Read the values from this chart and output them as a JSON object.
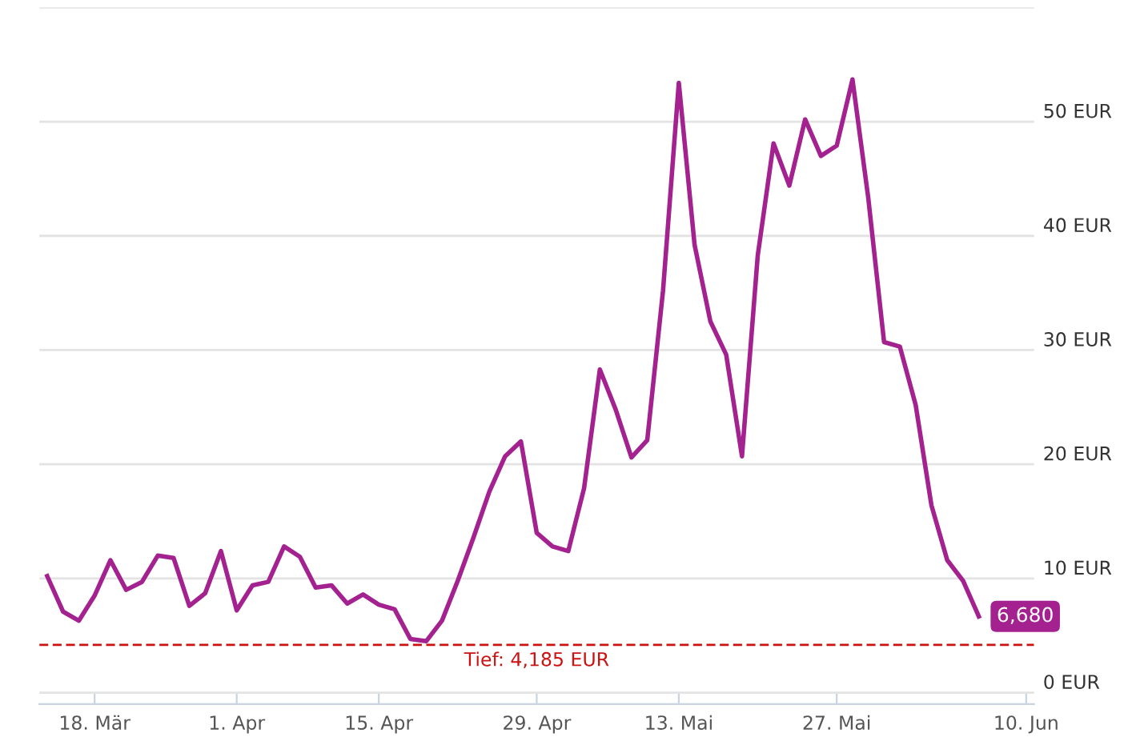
{
  "chart_data": {
    "type": "line",
    "categories": [
      null,
      null,
      null,
      "18. Mär",
      null,
      null,
      null,
      null,
      null,
      null,
      null,
      null,
      "1. Apr",
      null,
      null,
      null,
      null,
      null,
      null,
      null,
      null,
      "15. Apr",
      null,
      null,
      null,
      null,
      null,
      null,
      null,
      null,
      null,
      "29. Apr",
      null,
      null,
      null,
      null,
      null,
      null,
      null,
      null,
      "13. Mai",
      null,
      null,
      null,
      null,
      null,
      null,
      null,
      null,
      null,
      "27. Mai",
      null,
      null,
      null,
      null,
      null,
      null,
      null,
      null,
      null,
      null,
      null,
      "10. Jun"
    ],
    "series": [
      {
        "color": "#a3228f",
        "values": [
          10.2,
          7.1,
          6.3,
          8.5,
          11.6,
          9.0,
          9.7,
          12.0,
          11.8,
          7.6,
          8.7,
          12.4,
          7.2,
          9.4,
          9.7,
          12.8,
          11.9,
          9.2,
          9.4,
          7.8,
          8.6,
          7.7,
          7.3,
          4.7,
          4.5,
          6.3,
          9.8,
          13.6,
          17.6,
          20.7,
          22.0,
          14.0,
          12.8,
          12.4,
          17.9,
          28.3,
          24.8,
          20.6,
          22.1,
          35.2,
          53.4,
          39.2,
          32.5,
          29.6,
          20.7,
          38.3,
          48.1,
          44.4,
          50.2,
          47.0,
          47.9,
          53.7,
          43.3,
          30.7,
          30.3,
          25.2,
          16.4,
          11.6,
          9.8,
          6.68,
          null,
          null,
          null
        ]
      }
    ],
    "ylim": [
      -1,
      60
    ],
    "yticks": [
      {
        "value": 0,
        "label": "0 EUR"
      },
      {
        "value": 10,
        "label": "10 EUR"
      },
      {
        "value": 20,
        "label": "20 EUR"
      },
      {
        "value": 30,
        "label": "30 EUR"
      },
      {
        "value": 40,
        "label": "40 EUR"
      },
      {
        "value": 50,
        "label": "50 EUR"
      },
      {
        "value": 60,
        "label": null
      }
    ],
    "grid": "y",
    "marker": "none",
    "line_style": "solid",
    "ref_lines": [
      {
        "axis": "y",
        "value": 4.185,
        "label": "Tief: 4,185 EUR",
        "color": "#cc1111",
        "line_style": "dashed"
      }
    ],
    "annotations": [
      {
        "text": "6,680",
        "y": 6.68
      }
    ]
  }
}
